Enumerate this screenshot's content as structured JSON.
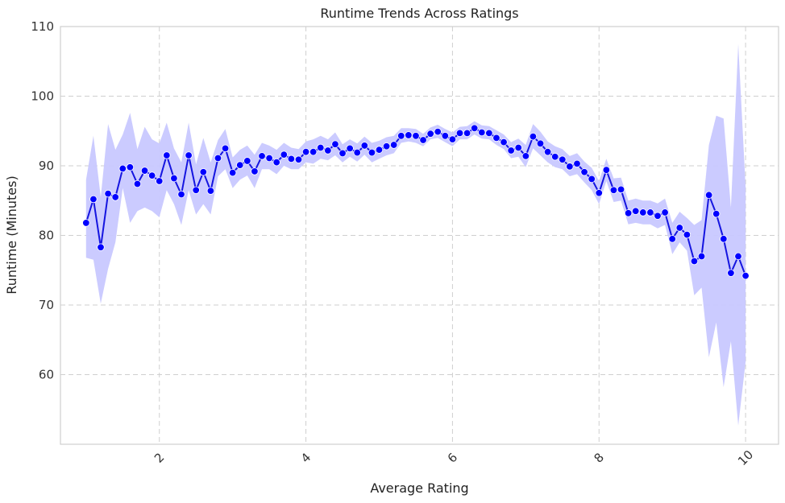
{
  "chart_data": {
    "type": "line",
    "title": "Runtime Trends Across Ratings",
    "xlabel": "Average Rating",
    "ylabel": "Runtime (Minutes)",
    "xlim": [
      0.65,
      10.45
    ],
    "ylim": [
      50,
      110
    ],
    "xticks": [
      2,
      4,
      6,
      8,
      10
    ],
    "yticks": [
      60,
      70,
      80,
      90,
      100,
      110
    ],
    "xtick_rotation": 45,
    "grid": true,
    "colors": {
      "line": "#1515e0",
      "marker": "#0000ff",
      "band": "#c8c8ff"
    },
    "series": [
      {
        "x": [
          1.0,
          1.1,
          1.2,
          1.3,
          1.4,
          1.5,
          1.6,
          1.7,
          1.8,
          1.9,
          2.0,
          2.1,
          2.2,
          2.3,
          2.4,
          2.5,
          2.6,
          2.7,
          2.8,
          2.9,
          3.0,
          3.1,
          3.2,
          3.3,
          3.4,
          3.5,
          3.6,
          3.7,
          3.8,
          3.9,
          4.0,
          4.1,
          4.2,
          4.3,
          4.4,
          4.5,
          4.6,
          4.7,
          4.8,
          4.9,
          5.0,
          5.1,
          5.2,
          5.3,
          5.4,
          5.5,
          5.6,
          5.7,
          5.8,
          5.9,
          6.0,
          6.1,
          6.2,
          6.3,
          6.4,
          6.5,
          6.6,
          6.7,
          6.8,
          6.9,
          7.0,
          7.1,
          7.2,
          7.3,
          7.4,
          7.5,
          7.6,
          7.7,
          7.8,
          7.9,
          8.0,
          8.1,
          8.2,
          8.3,
          8.4,
          8.5,
          8.6,
          8.7,
          8.8,
          8.9,
          9.0,
          9.1,
          9.2,
          9.3,
          9.4,
          9.5,
          9.6,
          9.7,
          9.8,
          9.9,
          10.0
        ],
        "y": [
          81.8,
          85.2,
          78.3,
          86.0,
          85.5,
          89.6,
          89.8,
          87.4,
          89.3,
          88.6,
          87.8,
          91.5,
          88.2,
          85.9,
          91.5,
          86.5,
          89.1,
          86.4,
          91.1,
          92.5,
          89.0,
          90.1,
          90.7,
          89.2,
          91.4,
          91.1,
          90.5,
          91.6,
          91.0,
          90.9,
          92.0,
          92.0,
          92.6,
          92.2,
          93.1,
          91.8,
          92.5,
          91.9,
          92.9,
          91.9,
          92.3,
          92.8,
          93.0,
          94.3,
          94.4,
          94.3,
          93.7,
          94.6,
          94.9,
          94.3,
          93.8,
          94.7,
          94.7,
          95.4,
          94.8,
          94.7,
          94.0,
          93.4,
          92.2,
          92.6,
          91.4,
          94.2,
          93.2,
          92.0,
          91.3,
          90.9,
          89.9,
          90.3,
          89.1,
          88.1,
          86.1,
          89.4,
          86.5,
          86.6,
          83.2,
          83.5,
          83.3,
          83.3,
          82.8,
          83.3,
          79.5,
          81.1,
          80.1,
          76.3,
          77.0,
          85.8,
          83.1,
          79.5,
          74.6,
          77.0,
          74.2
        ],
        "lower": [
          76.8,
          76.5,
          70.2,
          75.2,
          79.0,
          86.8,
          81.8,
          83.5,
          84.0,
          83.5,
          82.6,
          86.5,
          84.5,
          81.5,
          86.5,
          83.0,
          84.5,
          83.0,
          88.5,
          89.5,
          86.8,
          88.0,
          88.6,
          86.8,
          89.5,
          89.5,
          88.8,
          90.0,
          89.5,
          89.5,
          90.5,
          90.3,
          91.0,
          90.8,
          91.5,
          90.5,
          91.3,
          90.6,
          91.6,
          90.5,
          91.0,
          91.5,
          91.8,
          93.3,
          93.5,
          93.3,
          92.8,
          93.8,
          94.0,
          93.4,
          92.8,
          93.8,
          93.8,
          94.5,
          93.9,
          93.8,
          93.0,
          92.4,
          91.1,
          91.3,
          89.8,
          92.5,
          91.5,
          90.5,
          89.8,
          89.5,
          88.5,
          88.8,
          87.6,
          86.5,
          84.5,
          87.8,
          84.8,
          85.0,
          81.6,
          81.8,
          81.6,
          81.6,
          81.0,
          81.5,
          77.3,
          79.0,
          77.8,
          71.4,
          72.5,
          62.5,
          67.5,
          58.2,
          64.8,
          52.7,
          61.8
        ],
        "upper": [
          88.0,
          94.3,
          85.5,
          96.0,
          92.3,
          94.5,
          97.6,
          92.4,
          95.6,
          93.8,
          93.2,
          96.2,
          92.5,
          90.5,
          96.2,
          90.2,
          94.0,
          90.5,
          93.7,
          95.3,
          91.2,
          92.3,
          92.9,
          91.6,
          93.3,
          92.9,
          92.3,
          93.3,
          92.6,
          92.4,
          93.5,
          93.8,
          94.3,
          93.8,
          94.8,
          93.1,
          93.8,
          93.2,
          94.2,
          93.3,
          93.6,
          94.1,
          94.3,
          95.4,
          95.4,
          95.3,
          94.6,
          95.5,
          95.9,
          95.3,
          94.8,
          95.6,
          95.7,
          96.4,
          95.8,
          95.7,
          95.1,
          94.5,
          93.4,
          93.9,
          93.0,
          96.0,
          94.9,
          93.5,
          92.8,
          92.4,
          91.4,
          91.8,
          90.6,
          89.7,
          87.8,
          91.0,
          88.2,
          88.3,
          85.0,
          85.3,
          85.0,
          85.0,
          84.6,
          85.3,
          81.8,
          83.4,
          82.5,
          81.5,
          82.2,
          93.0,
          97.2,
          96.8,
          84.0,
          107.5,
          87.0
        ]
      }
    ]
  }
}
